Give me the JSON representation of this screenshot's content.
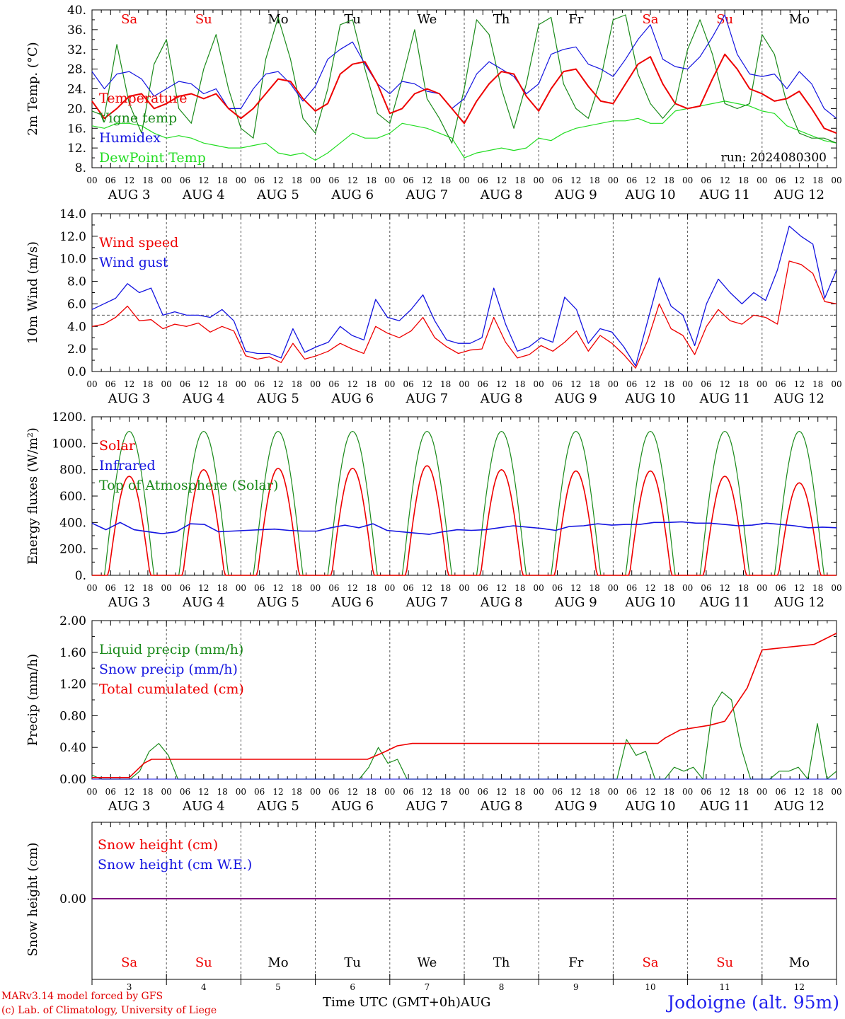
{
  "colors": {
    "red": "#ee0000",
    "blue": "#1414e0",
    "green": "#1a8a1a",
    "lightgreen": "#22dd22",
    "purple": "#800080",
    "grid": "#555555",
    "black": "#000000"
  },
  "footer": {
    "credit1": "MARv3.14 model forced by GFS",
    "credit2": "(c) Lab. of Climatology, University of Liege",
    "xlabel_text": "Time UTC (GMT+0h)",
    "month": "AUG",
    "station": "Jodoigne (alt. 95m)"
  },
  "days": {
    "short": [
      "Sa",
      "Su",
      "Mo",
      "Tu",
      "We",
      "Th",
      "Fr",
      "Sa",
      "Su",
      "Mo"
    ],
    "weekend": [
      true,
      true,
      false,
      false,
      false,
      false,
      false,
      true,
      true,
      false
    ],
    "dates": [
      "AUG 3",
      "AUG 4",
      "AUG 5",
      "AUG 6",
      "AUG 7",
      "AUG 8",
      "AUG 9",
      "AUG 10",
      "AUG 11",
      "AUG 12"
    ],
    "numbers": [
      "3",
      "4",
      "5",
      "6",
      "7",
      "8",
      "9",
      "10",
      "11",
      "12"
    ],
    "hours": [
      "00",
      "06",
      "12",
      "18"
    ],
    "last_hour": "00"
  },
  "chart_data": [
    {
      "type": "line",
      "ylabel": "2m Temp. (°C)",
      "ylim": [
        8,
        40
      ],
      "yticks": [
        "8.",
        "12.",
        "16.",
        "20.",
        "24.",
        "28.",
        "32.",
        "36.",
        "40."
      ],
      "annotation": "run: 2024080300",
      "series": [
        {
          "name": "Temperature",
          "color": "red",
          "values": [
            21.5,
            18,
            20,
            22.5,
            23,
            20,
            21,
            22.5,
            23,
            22,
            23,
            20,
            18,
            20,
            23,
            26,
            25.5,
            22,
            19.5,
            21,
            27,
            29,
            29.5,
            25,
            19,
            20,
            23,
            24,
            23,
            20,
            17,
            21.5,
            25,
            27.5,
            27,
            22.5,
            19.5,
            24,
            27.5,
            28,
            24.5,
            21.5,
            21,
            25,
            29,
            30.5,
            25,
            21,
            20,
            20.5,
            26,
            31,
            28,
            24,
            23,
            21.5,
            22,
            23.5,
            20,
            16,
            15
          ]
        },
        {
          "name": "Vigne temp",
          "color": "green",
          "values": [
            19.5,
            18.5,
            33,
            21,
            15,
            29,
            34,
            20,
            17,
            28,
            35,
            24,
            16,
            14,
            30,
            38.5,
            30,
            18,
            15,
            24,
            37,
            38,
            28,
            19,
            17,
            26,
            36,
            22,
            18,
            13,
            24,
            38,
            35,
            24,
            16,
            25,
            37,
            38.5,
            25,
            20,
            18,
            26,
            38,
            39,
            27,
            21,
            18,
            21,
            32,
            38,
            31,
            21,
            20,
            21,
            35,
            31,
            21,
            15,
            14,
            14,
            13
          ]
        },
        {
          "name": "Humidex",
          "color": "blue",
          "values": [
            27.5,
            24,
            27,
            27.5,
            26,
            22.5,
            24,
            25.5,
            25,
            23,
            24,
            20,
            20,
            24,
            27,
            27.5,
            25,
            21.5,
            24.5,
            30,
            32,
            33.5,
            29,
            25,
            23,
            25.5,
            25,
            23.5,
            23,
            20,
            22,
            27,
            29.5,
            28,
            26.5,
            23,
            25,
            31,
            32,
            32.5,
            29,
            28,
            26.5,
            30,
            34,
            37,
            30,
            28.5,
            28,
            30.5,
            34.5,
            39,
            31,
            27,
            26.5,
            27,
            24,
            27.5,
            25,
            20,
            18
          ]
        },
        {
          "name": "DewPoint Temp",
          "color": "lightgreen",
          "values": [
            16.5,
            16,
            17,
            17,
            16.5,
            15,
            14,
            14.5,
            14,
            13,
            12.5,
            12,
            12,
            12.5,
            13,
            11,
            10.5,
            11,
            9.5,
            11,
            13,
            15,
            14,
            14,
            15,
            17,
            16.5,
            16,
            15,
            14,
            10,
            11,
            11.5,
            12,
            11.5,
            12,
            14,
            13.5,
            15,
            16,
            16.5,
            17,
            17.5,
            17.5,
            18,
            17,
            17,
            19.5,
            20,
            20.5,
            21,
            21.5,
            21,
            20.5,
            19.5,
            19,
            16.5,
            15.5,
            14.5,
            13.5,
            13
          ]
        }
      ]
    },
    {
      "type": "line",
      "ylabel": "10m Wind (m/s)",
      "ylim": [
        0,
        14
      ],
      "yticks": [
        "0.0",
        "2.0",
        "4.0",
        "6.0",
        "8.0",
        "10.0",
        "12.0",
        "14.0"
      ],
      "reference_line": 5.0,
      "series": [
        {
          "name": "Wind speed",
          "color": "red",
          "values": [
            4,
            4.2,
            4.8,
            5.8,
            4.5,
            4.6,
            3.8,
            4.2,
            4,
            4.3,
            3.5,
            4,
            3.6,
            1.4,
            1.1,
            1.3,
            0.8,
            2.5,
            1.1,
            1.4,
            1.8,
            2.5,
            2,
            1.6,
            4,
            3.4,
            3,
            3.6,
            4.8,
            3,
            2.2,
            1.6,
            1.9,
            2,
            4.8,
            2.6,
            1.2,
            1.5,
            2.3,
            1.8,
            2.6,
            3.6,
            1.8,
            3.2,
            2.5,
            1.5,
            0.3,
            2.7,
            6,
            3.8,
            3.2,
            1.5,
            4,
            5.5,
            4.5,
            4.2,
            5,
            4.8,
            4.2,
            9.8,
            9.5,
            8.7,
            6.2,
            6
          ]
        },
        {
          "name": "Wind gust",
          "color": "blue",
          "values": [
            5.5,
            6,
            6.5,
            7.8,
            7,
            7.4,
            5,
            5.3,
            5,
            5,
            4.8,
            5.5,
            4.5,
            1.8,
            1.6,
            1.6,
            1.2,
            3.8,
            1.7,
            2.2,
            2.6,
            4,
            3.2,
            2.8,
            6.4,
            4.8,
            4.5,
            5.5,
            6.8,
            4.5,
            2.8,
            2.5,
            2.5,
            3,
            7.4,
            4.2,
            1.8,
            2.2,
            3,
            2.6,
            6.6,
            5.5,
            2.5,
            3.8,
            3.5,
            2.2,
            0.5,
            4.4,
            8.3,
            5.8,
            5,
            2.3,
            6,
            8.2,
            7,
            6,
            7,
            6.3,
            9,
            12.9,
            12,
            11.3,
            6.5,
            9
          ]
        }
      ]
    },
    {
      "type": "line",
      "ylabel": "Energy fluxes (W/m²)",
      "ylim": [
        0,
        1200
      ],
      "yticks": [
        "0.",
        "200.",
        "400.",
        "600.",
        "800.",
        "1000.",
        "1200."
      ],
      "series": [
        {
          "name": "Solar",
          "color": "red",
          "peaks": [
            750,
            800,
            810,
            810,
            830,
            800,
            790,
            790,
            750,
            700
          ]
        },
        {
          "name": "Infrared",
          "color": "blue",
          "values": [
            395,
            345,
            400,
            345,
            330,
            315,
            330,
            390,
            385,
            330,
            335,
            340,
            345,
            350,
            340,
            335,
            335,
            360,
            380,
            360,
            390,
            340,
            330,
            320,
            310,
            330,
            345,
            340,
            345,
            360,
            375,
            365,
            355,
            340,
            370,
            375,
            390,
            380,
            385,
            385,
            400,
            400,
            405,
            395,
            395,
            385,
            375,
            380,
            395,
            385,
            375,
            360,
            365,
            360
          ]
        },
        {
          "name": "Top of Atmosphere (Solar)",
          "color": "green",
          "peak": 1090
        }
      ]
    },
    {
      "type": "line",
      "ylabel": "Precip (mm/h)",
      "ylim": [
        0,
        2
      ],
      "yticks": [
        "0.00",
        "0.40",
        "0.80",
        "1.20",
        "1.60",
        "2.00"
      ],
      "series": [
        {
          "name": "Liquid precip (mm/h)",
          "color": "green",
          "values": [
            0.05,
            0,
            0,
            0,
            0,
            0.1,
            0.35,
            0.45,
            0.3,
            0,
            0,
            0,
            0,
            0,
            0,
            0,
            0,
            0,
            0,
            0,
            0,
            0,
            0,
            0,
            0,
            0,
            0,
            0,
            0,
            0.15,
            0.4,
            0.2,
            0.25,
            0,
            0,
            0,
            0,
            0,
            0,
            0,
            0,
            0,
            0,
            0,
            0,
            0,
            0,
            0,
            0,
            0,
            0,
            0,
            0,
            0,
            0,
            0,
            0.5,
            0.3,
            0.35,
            0,
            0,
            0.15,
            0.1,
            0.15,
            0,
            0.9,
            1.1,
            1,
            0.4,
            0,
            0,
            0,
            0.1,
            0.1,
            0.15,
            0,
            0.7,
            0,
            0.1
          ]
        },
        {
          "name": "Snow precip (mm/h)",
          "color": "blue",
          "values": [
            0
          ]
        },
        {
          "name": "Total cumulated (cm)",
          "color": "red",
          "x": [
            0,
            0.5,
            0.7,
            0.8,
            3.7,
            3.9,
            4.1,
            4.3,
            7.6,
            7.7,
            7.9,
            8.3,
            8.5,
            8.8,
            9.0,
            9.7,
            10
          ],
          "values": [
            0.02,
            0.02,
            0.2,
            0.25,
            0.25,
            0.33,
            0.42,
            0.45,
            0.45,
            0.52,
            0.62,
            0.68,
            0.73,
            1.15,
            1.63,
            1.7,
            1.84
          ]
        }
      ]
    },
    {
      "type": "line",
      "ylabel": "Snow height (cm)",
      "yticks": [
        "0.00"
      ],
      "series": [
        {
          "name": "Snow height (cm)",
          "color": "red",
          "values": [
            0
          ]
        },
        {
          "name": "Snow height (cm W.E.)",
          "color": "blue",
          "values": [
            0
          ]
        }
      ]
    }
  ]
}
